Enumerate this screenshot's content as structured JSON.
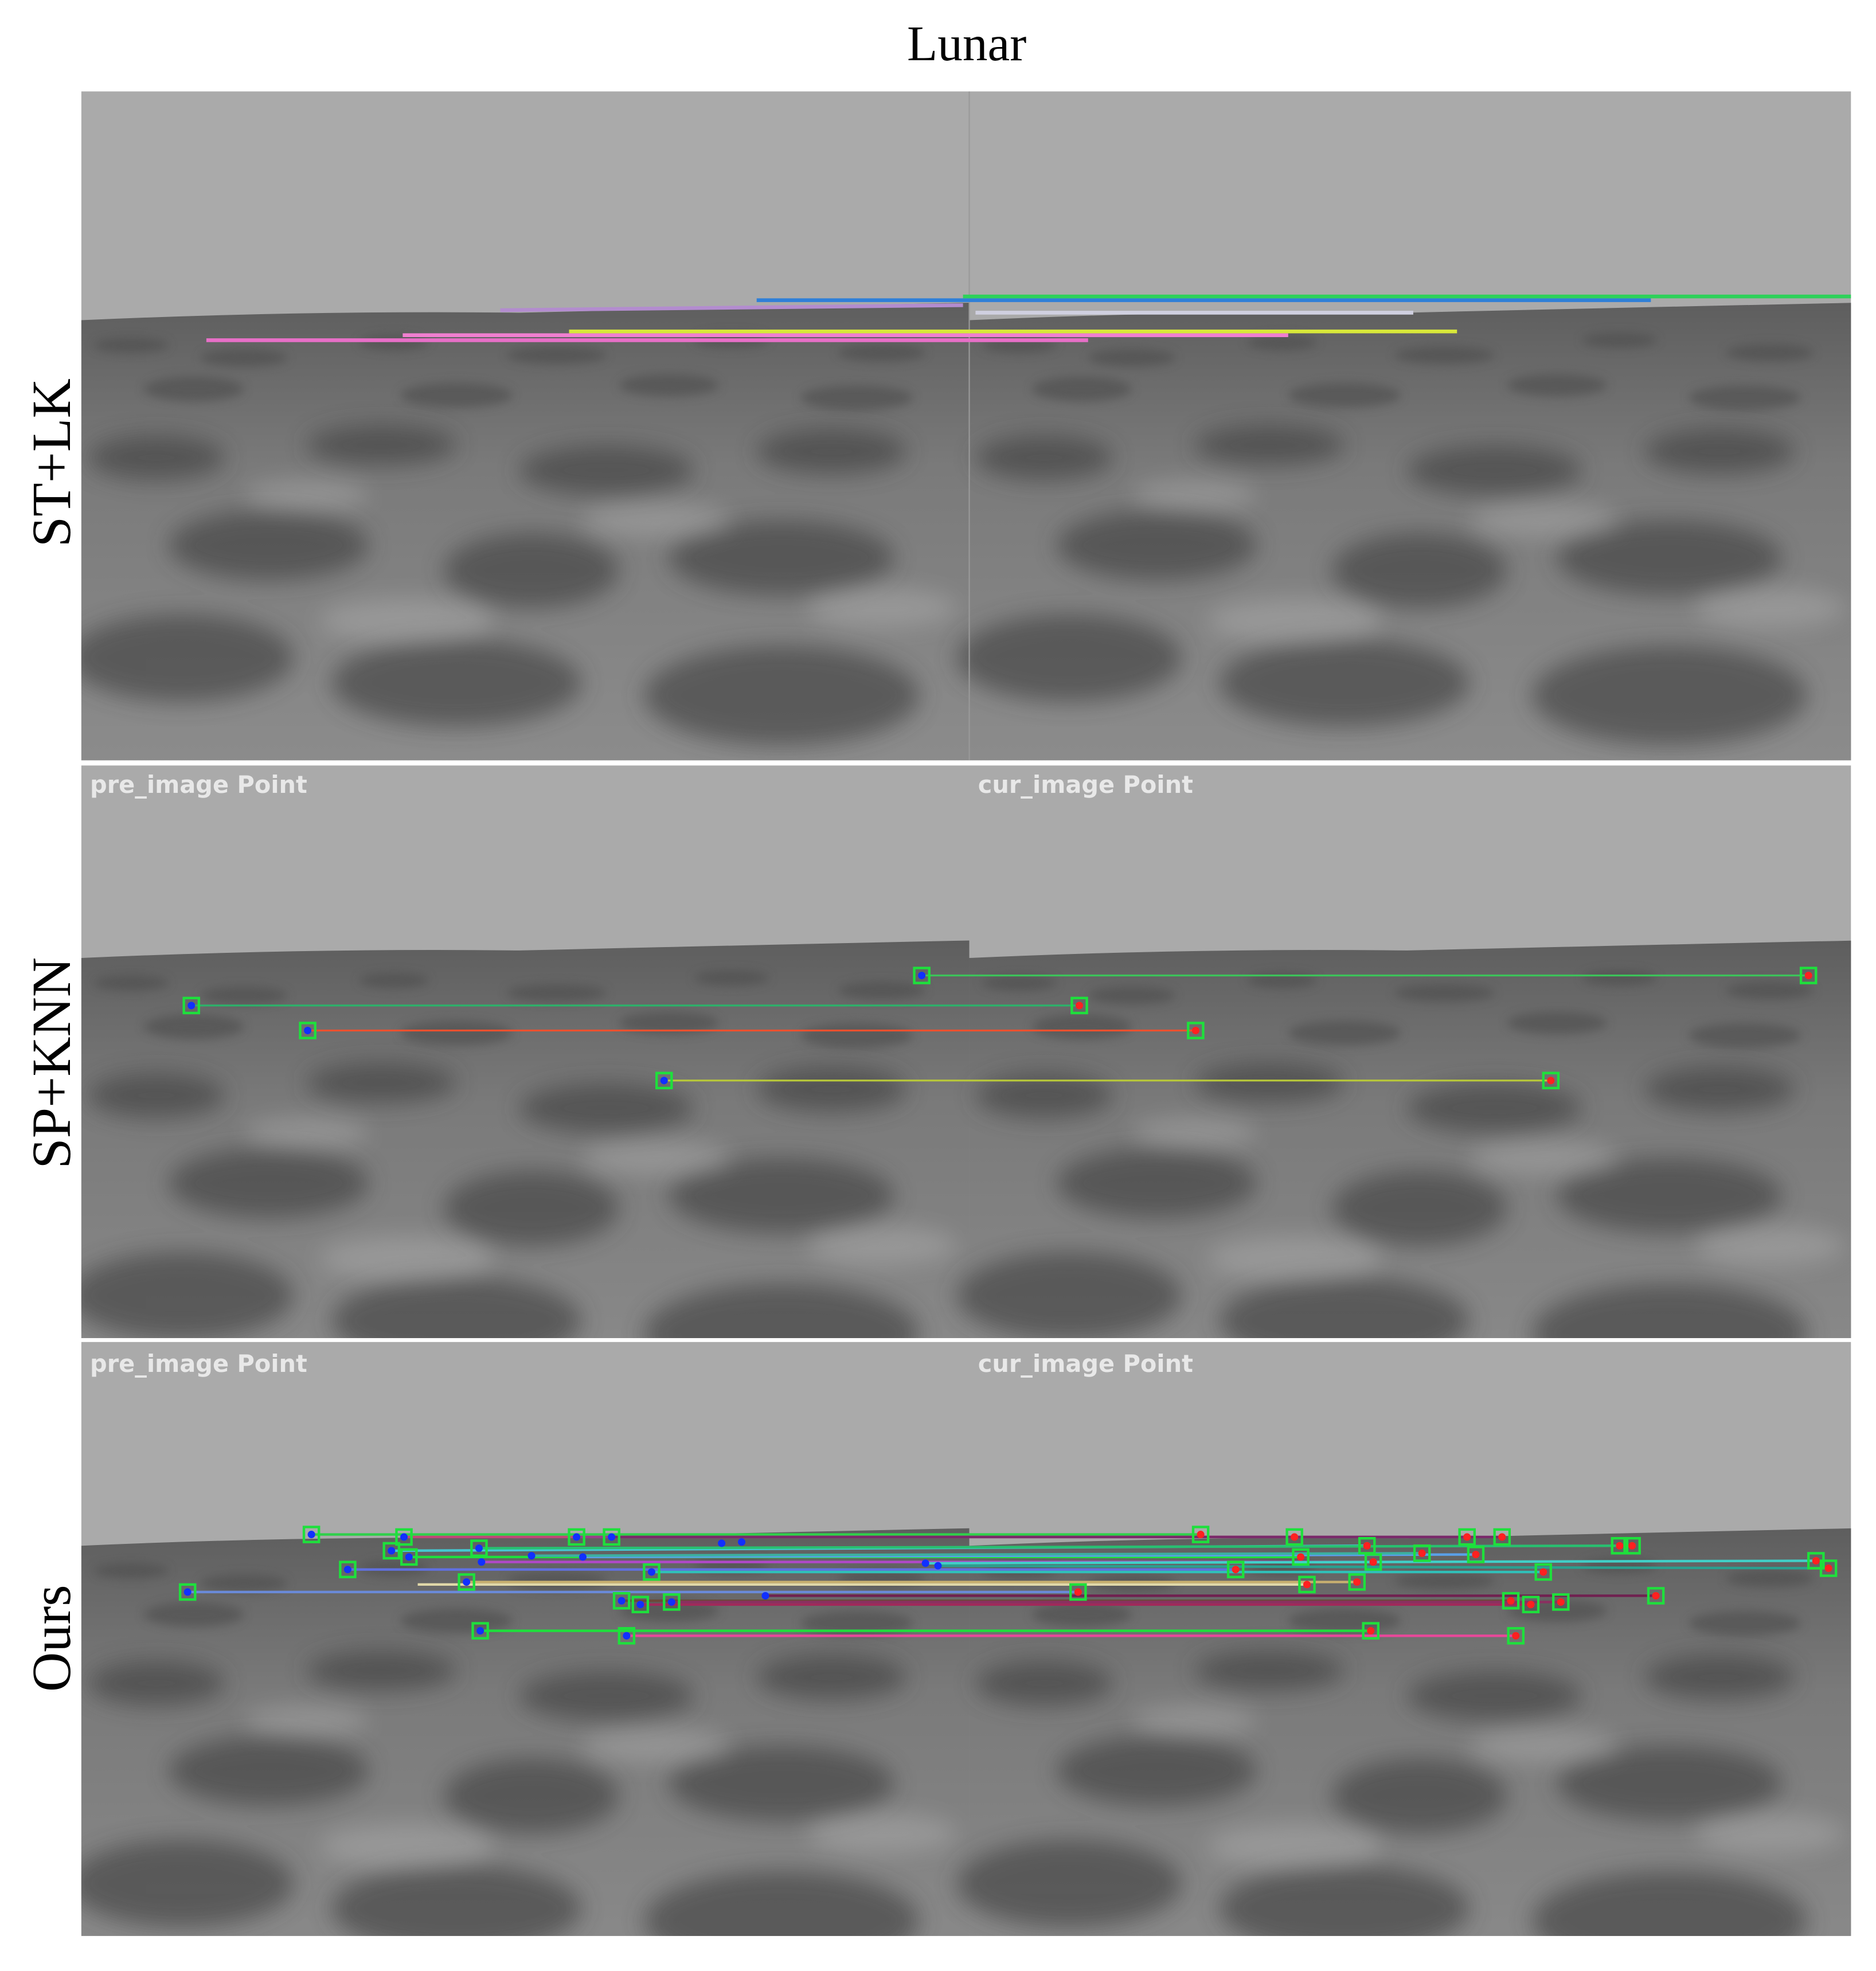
{
  "title": "Lunar",
  "rows": [
    {
      "label": "ST+LK"
    },
    {
      "label": "SP+KNN",
      "left_caption": "pre_image Point",
      "right_caption": "cur_image Point"
    },
    {
      "label": "Ours",
      "left_caption": "pre_image Point",
      "right_caption": "cur_image Point"
    }
  ]
}
